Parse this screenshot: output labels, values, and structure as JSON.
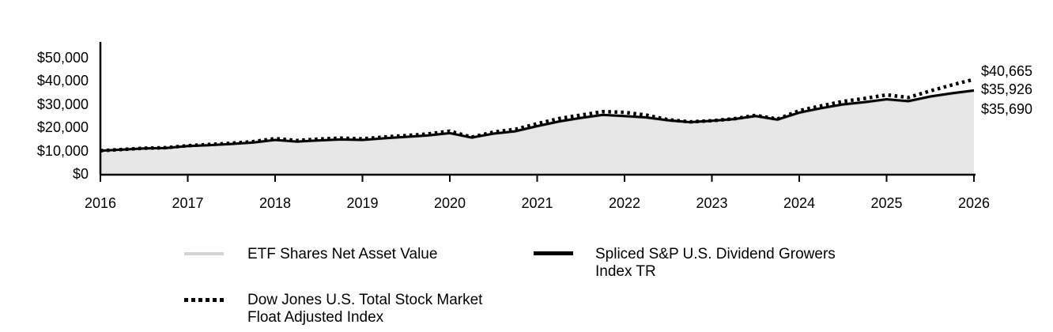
{
  "chart": {
    "end_labels": [
      "$40,665",
      "$35,926",
      "$35,690"
    ]
  },
  "legend": {
    "items": [
      {
        "name": "ETF Shares Net Asset Value",
        "label_lines": [
          "ETF Shares Net Asset Value"
        ],
        "swatch": "gray-line",
        "color": "#d4d4d4"
      },
      {
        "name": "Spliced S&P U.S. Dividend Growers Index TR",
        "label_lines": [
          "Spliced S&P U.S. Dividend Growers",
          "Index TR"
        ],
        "swatch": "solid-black-line",
        "color": "#000000"
      },
      {
        "name": "Dow Jones U.S. Total Stock Market Float Adjusted Index",
        "label_lines": [
          "Dow Jones U.S. Total Stock Market",
          "Float Adjusted Index"
        ],
        "swatch": "dotted-black-line",
        "color": "#000000"
      }
    ]
  },
  "chart_data": {
    "type": "area",
    "title": "",
    "xlabel": "",
    "ylabel": "",
    "x": [
      2016,
      2016.25,
      2016.5,
      2016.75,
      2017,
      2017.25,
      2017.5,
      2017.75,
      2018,
      2018.25,
      2018.5,
      2018.75,
      2019,
      2019.25,
      2019.5,
      2019.75,
      2020,
      2020.25,
      2020.5,
      2020.75,
      2021,
      2021.25,
      2021.5,
      2021.75,
      2022,
      2022.25,
      2022.5,
      2022.75,
      2023,
      2023.25,
      2023.5,
      2023.75,
      2024,
      2024.25,
      2024.5,
      2024.75,
      2025,
      2025.25,
      2025.5,
      2025.75,
      2026
    ],
    "x_tick_labels": [
      "2016",
      "2017",
      "2018",
      "2019",
      "2020",
      "2021",
      "2022",
      "2023",
      "2024",
      "2025",
      "2026"
    ],
    "xlim": [
      2016,
      2026
    ],
    "y_ticks": [
      0,
      10000,
      20000,
      30000,
      40000,
      50000
    ],
    "y_tick_labels": [
      "$0",
      "$10,000",
      "$20,000",
      "$30,000",
      "$40,000",
      "$50,000"
    ],
    "ylim": [
      0,
      50000
    ],
    "grid": false,
    "legend_position": "bottom",
    "series": [
      {
        "name": "ETF Shares Net Asset Value",
        "style": "gray-area",
        "line_color": "#b0b0b0",
        "fill_color": "#e7e7e7",
        "end_value": 35690,
        "end_label": "$35,690",
        "values": [
          10000,
          10400,
          10900,
          11100,
          11900,
          12300,
          12800,
          13400,
          14500,
          13800,
          14300,
          14700,
          14500,
          15200,
          15800,
          16400,
          17400,
          15500,
          17200,
          18200,
          20400,
          22400,
          23900,
          25200,
          24700,
          24100,
          22900,
          22100,
          22700,
          23400,
          24700,
          23200,
          26200,
          28100,
          29700,
          30700,
          31900,
          31100,
          33100,
          34500,
          35690
        ]
      },
      {
        "name": "Spliced S&P U.S. Dividend Growers Index TR",
        "style": "solid-black",
        "line_color": "#000000",
        "end_value": 35926,
        "end_label": "$35,926",
        "values": [
          10000,
          10450,
          10960,
          11170,
          11980,
          12390,
          12890,
          13490,
          14620,
          13910,
          14420,
          14820,
          14630,
          15330,
          15940,
          16550,
          17560,
          15650,
          17360,
          18370,
          20580,
          22590,
          24100,
          25410,
          24910,
          24310,
          23090,
          22290,
          22890,
          23600,
          24900,
          23400,
          26400,
          28310,
          29920,
          30930,
          32130,
          31330,
          33330,
          34740,
          35926
        ]
      },
      {
        "name": "Dow Jones U.S. Total Stock Market Float Adjusted Index",
        "style": "dotted-black",
        "line_color": "#000000",
        "end_value": 40665,
        "end_label": "$40,665",
        "values": [
          10000,
          10500,
          11050,
          11300,
          12150,
          12650,
          13200,
          13900,
          15200,
          14400,
          15000,
          15400,
          15100,
          15900,
          16500,
          17200,
          18400,
          15800,
          18000,
          19200,
          21600,
          23800,
          25300,
          26800,
          26500,
          25300,
          23300,
          22400,
          22900,
          23700,
          25200,
          23600,
          27200,
          29300,
          31200,
          32500,
          34000,
          32900,
          35700,
          38300,
          40665
        ]
      }
    ]
  }
}
